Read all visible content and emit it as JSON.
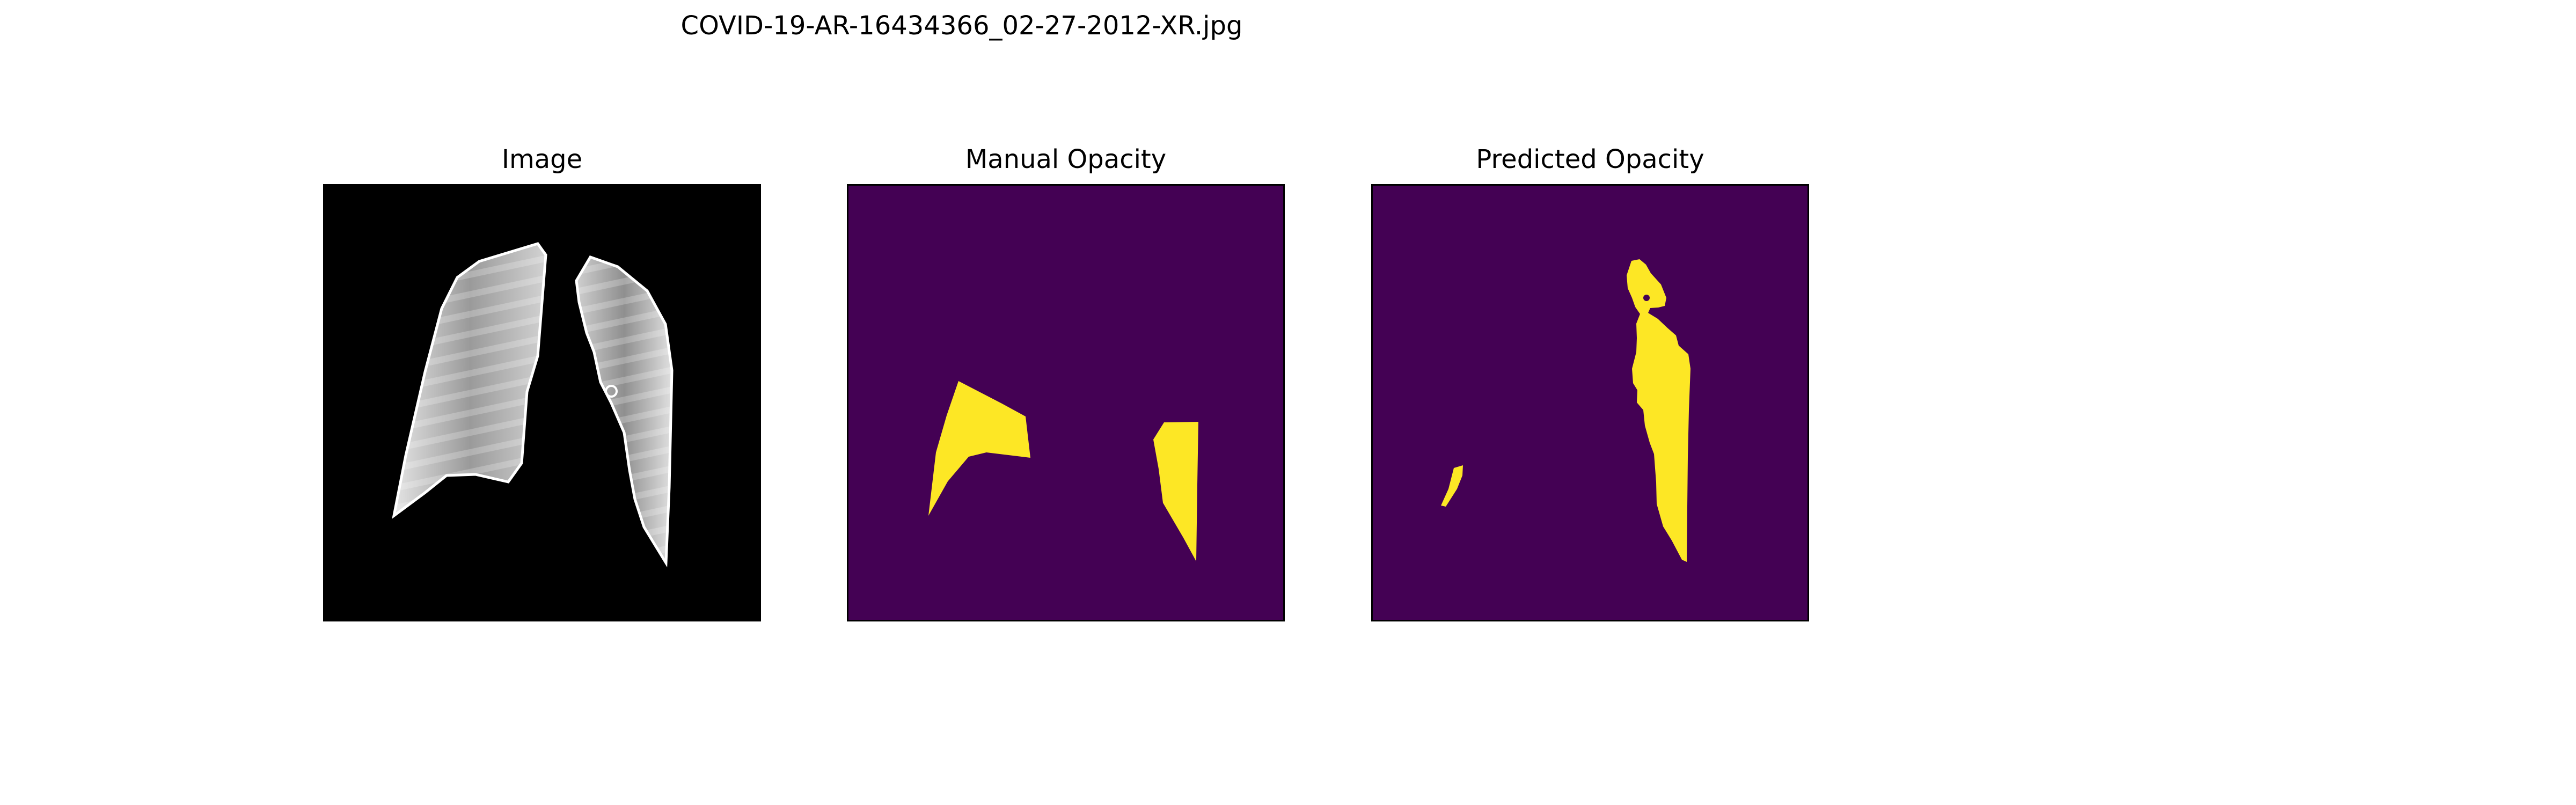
{
  "figure": {
    "title": "COVID-19-AR-16434366_02-27-2012-XR.jpg"
  },
  "panels": [
    {
      "title": "Image"
    },
    {
      "title": "Manual Opacity"
    },
    {
      "title": "Predicted Opacity"
    }
  ],
  "colors": {
    "mask_background": "#440154",
    "mask_foreground": "#fde725",
    "image_background": "#000000",
    "frame": "#000000"
  }
}
